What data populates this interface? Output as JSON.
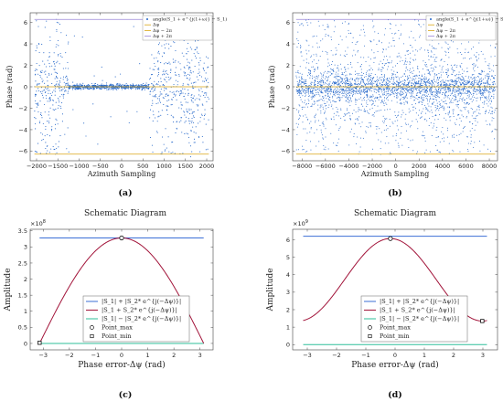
{
  "colors": {
    "blue": "#3b6fd6",
    "crimson": "#a2143a",
    "teal": "#2fbf9a",
    "scatter": "#1f63c8",
    "gold": "#d9a514",
    "lavender": "#9a86d6",
    "background": "#ffffff"
  },
  "chart_data": [
    {
      "id": "a",
      "type": "scatter",
      "caption": "(a)",
      "xlabel": "Azimuth Sampling",
      "ylabel": "Phase (rad)",
      "xlim": [
        -2150,
        2150
      ],
      "ylim": [
        -6.9,
        6.9
      ],
      "xticks": [
        -2000,
        -1500,
        -1000,
        -500,
        0,
        500,
        1000,
        1500,
        2000
      ],
      "yticks": [
        -6,
        -4,
        -2,
        0,
        2,
        4,
        6
      ],
      "legend_position": "top-right",
      "series": [
        {
          "name": "angle(S1 + e^{j(1+ω)} − S1)",
          "kind": "scatter",
          "color": "#1f63c8"
        },
        {
          "name": "Δφ",
          "kind": "line",
          "color": "#d9a514",
          "y": 0
        },
        {
          "name": "Δφ − 2π",
          "kind": "line",
          "color": "#d9a514",
          "y": -6.28
        },
        {
          "name": "Δφ + 2π",
          "kind": "line",
          "color": "#9a86d6",
          "y": 6.28
        }
      ],
      "legend_labels": [
        "angle(S_1 + e^{j(1+ω)} − S_1)",
        "Δφ",
        "Δφ − 2π",
        "Δφ + 2π"
      ]
    },
    {
      "id": "b",
      "type": "scatter",
      "caption": "(b)",
      "xlabel": "Azimuth Sampling",
      "ylabel": "Phase (rad)",
      "xlim": [
        -8800,
        8700
      ],
      "ylim": [
        -6.9,
        6.9
      ],
      "xticks": [
        -8000,
        -6000,
        -4000,
        -2000,
        0,
        2000,
        4000,
        6000,
        8000
      ],
      "yticks": [
        -6,
        -4,
        -2,
        0,
        2,
        4,
        6
      ],
      "legend_position": "top-right",
      "series": [
        {
          "name": "angle(S1 + e^{j(1+ω)} − S1)",
          "kind": "scatter",
          "color": "#1f63c8"
        },
        {
          "name": "Δφ",
          "kind": "line",
          "color": "#d9a514",
          "y": 0
        },
        {
          "name": "Δφ − 2π",
          "kind": "line",
          "color": "#d9a514",
          "y": -6.28
        },
        {
          "name": "Δφ + 2π",
          "kind": "line",
          "color": "#9a86d6",
          "y": 6.28
        }
      ],
      "legend_labels": [
        "angle(S_1 + e^{j(1+ω)} − S_1)",
        "Δφ",
        "Δφ − 2π",
        "Δφ + 2π"
      ]
    },
    {
      "id": "c",
      "type": "line",
      "caption": "(c)",
      "title": "Schematic Diagram",
      "exponent": "×10",
      "exponent_power": "8",
      "xlabel": "Phase error-Δψ (rad)",
      "ylabel": "Amplitude",
      "xlim": [
        -3.5,
        3.5
      ],
      "ylim": [
        -0.2,
        3.55
      ],
      "xticks": [
        -3,
        -2,
        -1,
        0,
        1,
        2,
        3
      ],
      "yticks": [
        0,
        0.5,
        1,
        1.5,
        2,
        2.5,
        3,
        3.5
      ],
      "legend_position": "bottom-center",
      "series": [
        {
          "name": "|S1| + |S2* e^{j(−Δψ)}|",
          "kind": "constant",
          "y": 3.28,
          "color": "#3b6fd6"
        },
        {
          "name": "|S1 + S2* e^{j(−Δψ)}|",
          "kind": "cosine_envelope",
          "peak": 3.28,
          "x_peak": 0,
          "color": "#a2143a"
        },
        {
          "name": "|S1| − |S2* e^{j(−Δψ)}|",
          "kind": "constant",
          "y": 0.0,
          "color": "#2fbf9a"
        }
      ],
      "points": [
        {
          "name": "Point_max",
          "x": 0.0,
          "y": 3.28,
          "marker": "circle"
        },
        {
          "name": "Point_min",
          "x": -3.14,
          "y": 0.02,
          "marker": "square"
        }
      ],
      "legend_labels": [
        "|S_1| + |S_2* e^{j(−Δψ)}|",
        "|S_1 + S_2* e^{j(−Δψ)}|",
        "|S_1| − |S_2* e^{j(−Δψ)}|",
        "Point_max",
        "Point_min"
      ]
    },
    {
      "id": "d",
      "type": "line",
      "caption": "(d)",
      "title": "Schematic Diagram",
      "exponent": "×10",
      "exponent_power": "9",
      "xlabel": "Phase error-Δψ (rad)",
      "ylabel": "Amplitude",
      "xlim": [
        -3.5,
        3.5
      ],
      "ylim": [
        -0.3,
        6.6
      ],
      "xticks": [
        -3,
        -2,
        -1,
        0,
        1,
        2,
        3
      ],
      "yticks": [
        0,
        1,
        2,
        3,
        4,
        5,
        6
      ],
      "legend_position": "bottom-center",
      "series": [
        {
          "name": "|S1| + |S2* e^{j(−Δψ)}|",
          "kind": "constant",
          "y": 6.2,
          "color": "#3b6fd6"
        },
        {
          "name": "|S1 + S2* e^{j(−Δψ)}|",
          "kind": "offset_cosine",
          "a": 3.71,
          "b": 2.36,
          "x_peak": -0.16,
          "color": "#a2143a"
        },
        {
          "name": "|S1| − |S2* e^{j(−Δψ)}|",
          "kind": "constant",
          "y": 0.0,
          "color": "#2fbf9a"
        }
      ],
      "points": [
        {
          "name": "Point_max",
          "x": -0.16,
          "y": 6.07,
          "marker": "circle"
        },
        {
          "name": "Point_min",
          "x": 2.98,
          "y": 1.35,
          "marker": "square"
        }
      ],
      "legend_labels": [
        "|S_1| + |S_2* e^{j(−Δψ)}|",
        "|S_1 + S_2* e^{j(−Δψ)}|",
        "|S_1| − |S_2* e^{j(−Δψ)}|",
        "Point_max",
        "Point_min"
      ]
    }
  ]
}
